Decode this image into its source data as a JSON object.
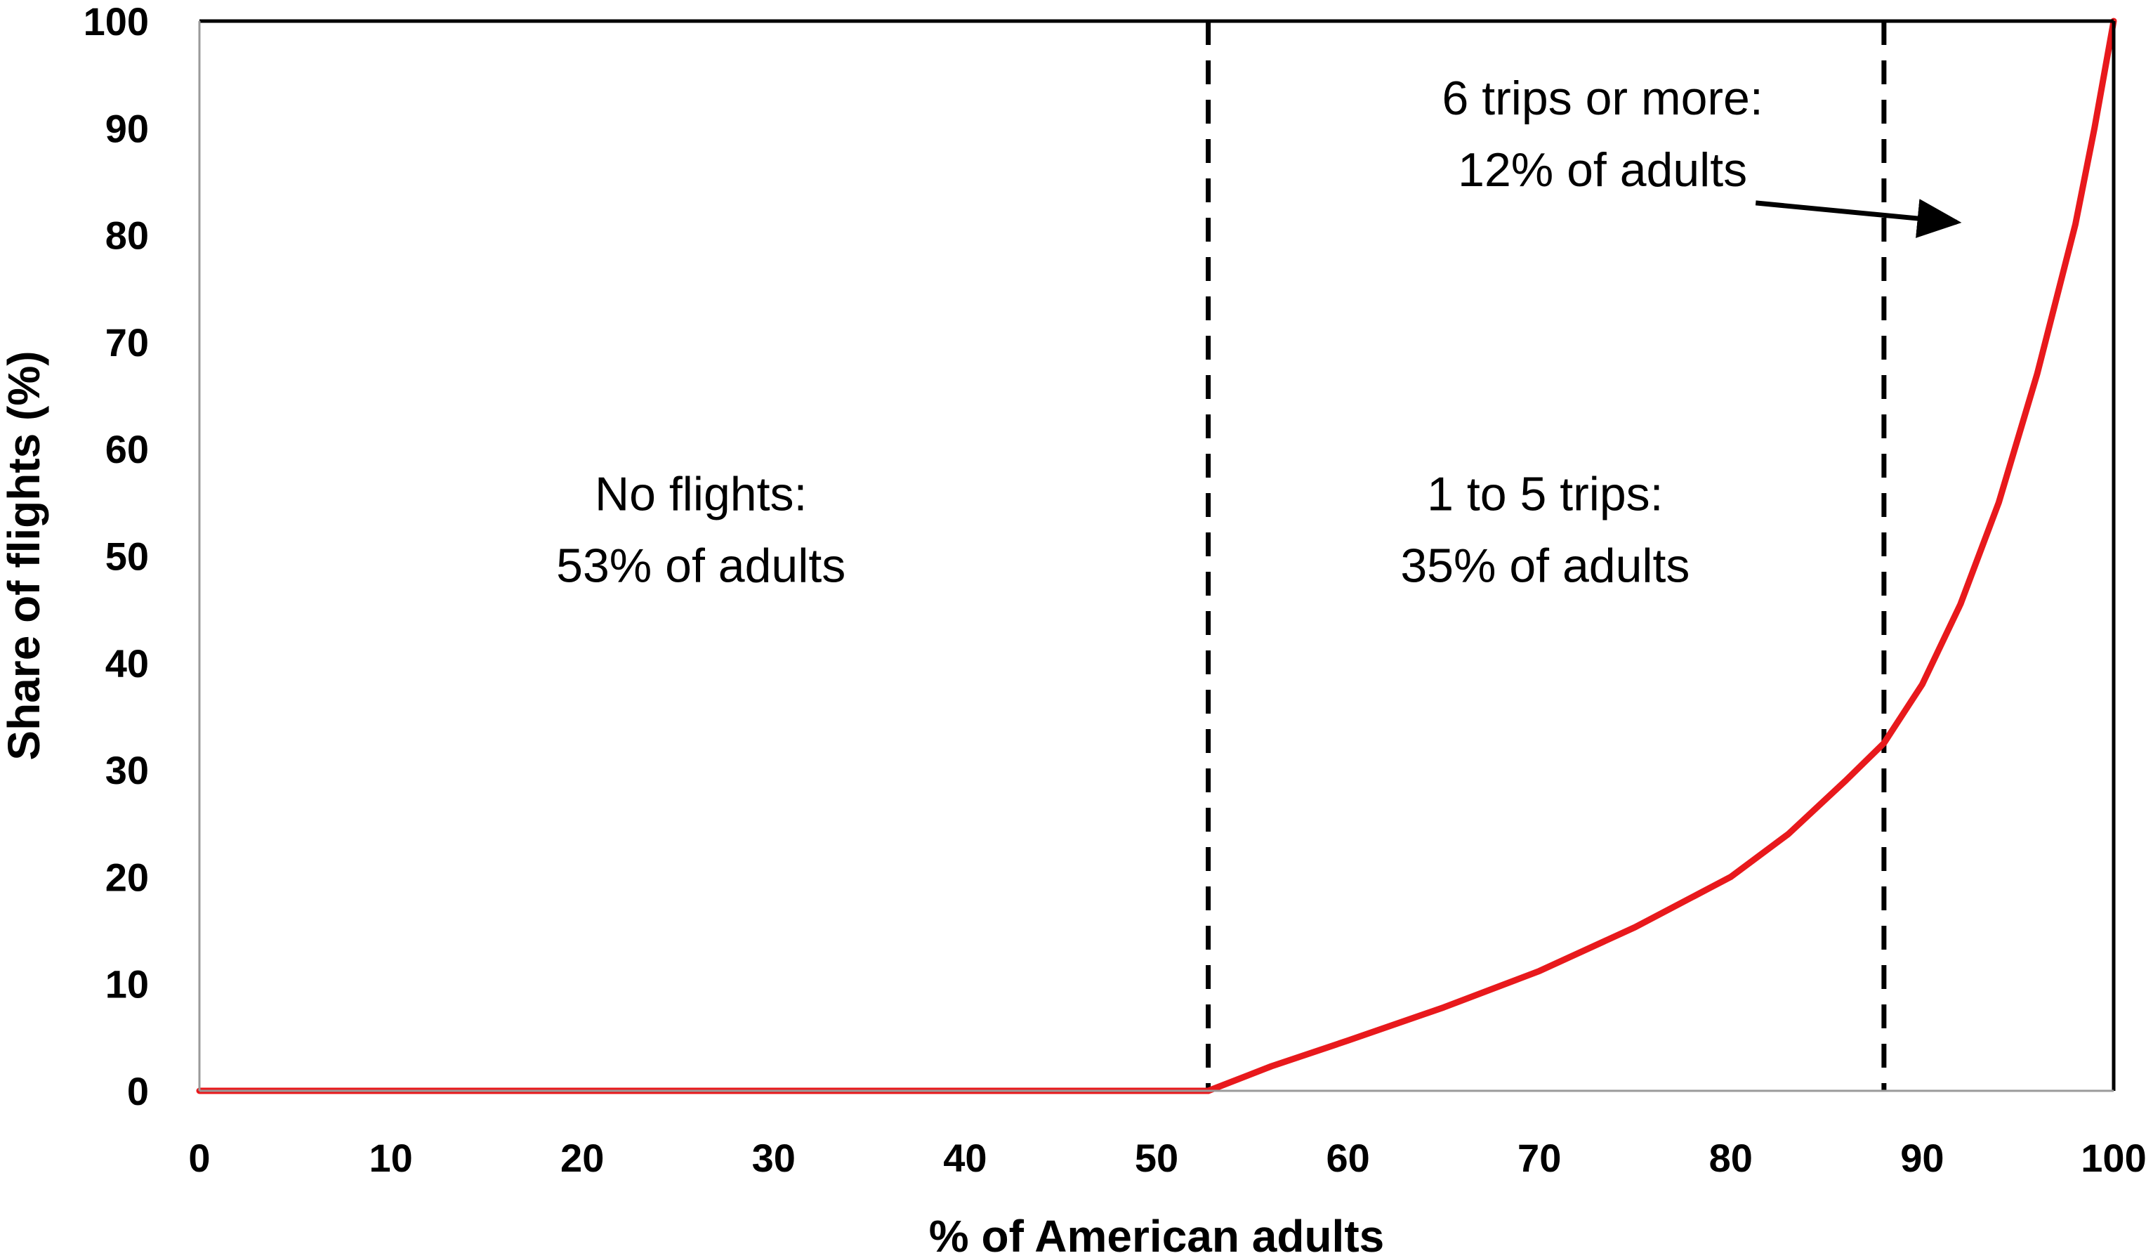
{
  "chart_data": {
    "type": "line",
    "title": "",
    "xlabel": "% of American adults",
    "ylabel": "Share of flights (%)",
    "xlim": [
      0,
      100
    ],
    "ylim": [
      0,
      100
    ],
    "xticks": [
      0,
      10,
      20,
      30,
      40,
      50,
      60,
      70,
      80,
      90,
      100
    ],
    "yticks": [
      0,
      10,
      20,
      30,
      40,
      50,
      60,
      70,
      80,
      90,
      100
    ],
    "grid": false,
    "legend": "none",
    "series": [
      {
        "color": "#e8191c",
        "x": [
          0,
          52.7,
          56,
          60,
          65,
          70,
          75,
          80,
          83,
          86,
          88,
          90,
          92,
          94,
          96,
          98,
          99,
          100
        ],
        "y": [
          0,
          0,
          2.3,
          4.7,
          7.8,
          11.2,
          15.3,
          20.0,
          24.0,
          29.0,
          32.5,
          38.0,
          45.5,
          55.0,
          67.0,
          81.0,
          90.0,
          100
        ]
      }
    ],
    "dividers": [
      {
        "x": 52.7,
        "style": "dashed",
        "color": "#000000"
      },
      {
        "x": 88,
        "style": "dashed",
        "color": "#000000"
      }
    ],
    "annotations": [
      {
        "id": "no-flights",
        "lines": [
          "No flights:",
          "53% of adults"
        ],
        "x": 26.2,
        "y": 52.5
      },
      {
        "id": "one-to-five",
        "lines": [
          "1 to 5 trips:",
          "35% of adults"
        ],
        "x": 70.3,
        "y": 52.5
      },
      {
        "id": "six-plus",
        "lines": [
          "6 trips or more:",
          "12% of adults"
        ],
        "x": 73.3,
        "y": 89.5,
        "arrow": {
          "from": [
            81.3,
            83
          ],
          "to": [
            91.8,
            81.2
          ]
        }
      }
    ]
  }
}
